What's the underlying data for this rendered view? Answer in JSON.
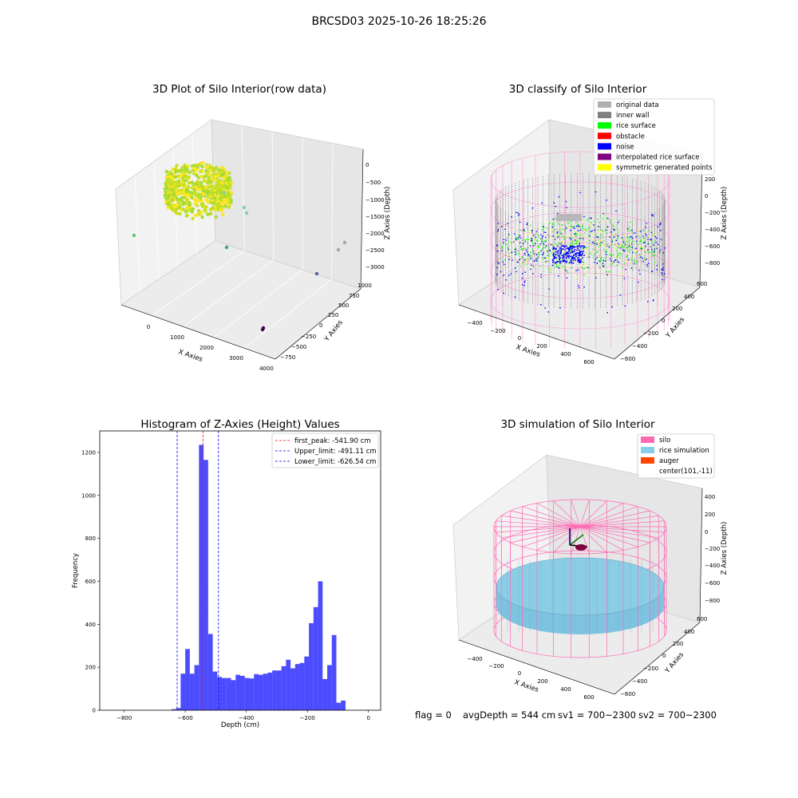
{
  "suptitle": "BRCSD03 2025-10-26 18:25:26",
  "footer": {
    "flag": "flag = 0",
    "avg_depth": "avgDepth = 544 cm",
    "sv1": "sv1 = 700~2300",
    "sv2": "sv2 = 700~2300"
  },
  "chart_data": [
    {
      "type": "scatter",
      "projection": "3d",
      "title": "3D Plot of Silo Interior(row data)",
      "xlabel": "X Axies",
      "ylabel": "Y Axies",
      "zlabel": "Z Axies (Depth)",
      "x_ticks": [
        "0",
        "1000",
        "2000",
        "3000",
        "4000"
      ],
      "y_ticks": [
        "1000",
        "750",
        "500",
        "250",
        "0",
        "−250",
        "−500",
        "−750"
      ],
      "z_ticks": [
        "0",
        "−500",
        "−1000",
        "−1500",
        "−2000",
        "−2500",
        "−3000"
      ],
      "colors": {
        "high": "#fde725",
        "mid": "#5ec962",
        "low": "#440154"
      }
    },
    {
      "type": "scatter",
      "projection": "3d",
      "title": "3D classify of Silo Interior",
      "xlabel": "X Axies",
      "ylabel": "Y Axies",
      "zlabel": "Z Axies (Depth)",
      "x_ticks": [
        "−400",
        "−200",
        "0",
        "200",
        "400",
        "600"
      ],
      "y_ticks": [
        "600",
        "400",
        "200",
        "0",
        "−200",
        "−400",
        "−600"
      ],
      "z_ticks": [
        "200",
        "0",
        "−200",
        "−400",
        "−600",
        "−800"
      ],
      "legend_position": "upper-right",
      "legend": [
        {
          "label": "original data",
          "color": "#b0b0b0"
        },
        {
          "label": "inner wall",
          "color": "#808080"
        },
        {
          "label": "rice surface",
          "color": "#00ff00"
        },
        {
          "label": "obstacle",
          "color": "#ff0000"
        },
        {
          "label": "noise",
          "color": "#0000ff"
        },
        {
          "label": "interpolated rice surface",
          "color": "#800080"
        },
        {
          "label": "symmetric generated points",
          "color": "#ffff00"
        }
      ]
    },
    {
      "type": "bar",
      "title": "Histogram of Z-Axies (Height) Values",
      "xlabel": "Depth (cm)",
      "ylabel": "Frequency",
      "xlim": [
        -880,
        40
      ],
      "ylim": [
        0,
        1300
      ],
      "x_ticks": [
        -800,
        -600,
        -400,
        -200,
        0
      ],
      "y_ticks": [
        0,
        200,
        400,
        600,
        800,
        1000,
        1200
      ],
      "bin_width": 15,
      "bars": [
        {
          "x": -645,
          "v": 5
        },
        {
          "x": -630,
          "v": 10
        },
        {
          "x": -615,
          "v": 170
        },
        {
          "x": -600,
          "v": 285
        },
        {
          "x": -585,
          "v": 170
        },
        {
          "x": -570,
          "v": 210
        },
        {
          "x": -555,
          "v": 1235
        },
        {
          "x": -540,
          "v": 1165
        },
        {
          "x": -525,
          "v": 355
        },
        {
          "x": -510,
          "v": 180
        },
        {
          "x": -495,
          "v": 155
        },
        {
          "x": -480,
          "v": 150
        },
        {
          "x": -465,
          "v": 150
        },
        {
          "x": -450,
          "v": 140
        },
        {
          "x": -435,
          "v": 165
        },
        {
          "x": -420,
          "v": 160
        },
        {
          "x": -405,
          "v": 150
        },
        {
          "x": -390,
          "v": 148
        },
        {
          "x": -375,
          "v": 168
        },
        {
          "x": -360,
          "v": 165
        },
        {
          "x": -345,
          "v": 170
        },
        {
          "x": -330,
          "v": 175
        },
        {
          "x": -315,
          "v": 185
        },
        {
          "x": -300,
          "v": 185
        },
        {
          "x": -285,
          "v": 205
        },
        {
          "x": -270,
          "v": 235
        },
        {
          "x": -255,
          "v": 195
        },
        {
          "x": -240,
          "v": 215
        },
        {
          "x": -225,
          "v": 220
        },
        {
          "x": -210,
          "v": 250
        },
        {
          "x": -195,
          "v": 405
        },
        {
          "x": -180,
          "v": 480
        },
        {
          "x": -165,
          "v": 600
        },
        {
          "x": -150,
          "v": 145
        },
        {
          "x": -135,
          "v": 210
        },
        {
          "x": -120,
          "v": 350
        },
        {
          "x": -105,
          "v": 35
        },
        {
          "x": -90,
          "v": 45
        }
      ],
      "bar_color": "#0000ff",
      "bar_opacity": 0.7,
      "lines": [
        {
          "x": -541.9,
          "label": "first_peak: -541.90 cm",
          "color": "#ff0000"
        },
        {
          "x": -491.11,
          "label": "Upper_limit: -491.11 cm",
          "color": "#0000ff"
        },
        {
          "x": -626.54,
          "label": "Lower_limit: -626.54 cm",
          "color": "#0000ff"
        }
      ],
      "legend_position": "upper-right"
    },
    {
      "type": "scatter",
      "projection": "3d",
      "title": "3D simulation of Silo Interior",
      "xlabel": "X Axies",
      "ylabel": "Y Axies",
      "zlabel": "Z Axies (Depth)",
      "x_ticks": [
        "−400",
        "−200",
        "0",
        "200",
        "400",
        "600"
      ],
      "y_ticks": [
        "600",
        "400",
        "200",
        "0",
        "−200",
        "−400",
        "−600"
      ],
      "z_ticks": [
        "400",
        "200",
        "0",
        "−200",
        "−400",
        "−600",
        "−800"
      ],
      "legend_position": "upper-right",
      "legend": [
        {
          "label": "silo",
          "color": "#ff69b4"
        },
        {
          "label": "rice simulation",
          "color": "#87ceeb"
        },
        {
          "label": "auger",
          "color": "#ff4500"
        },
        {
          "label": "center(101,-11)",
          "color": ""
        }
      ]
    }
  ]
}
